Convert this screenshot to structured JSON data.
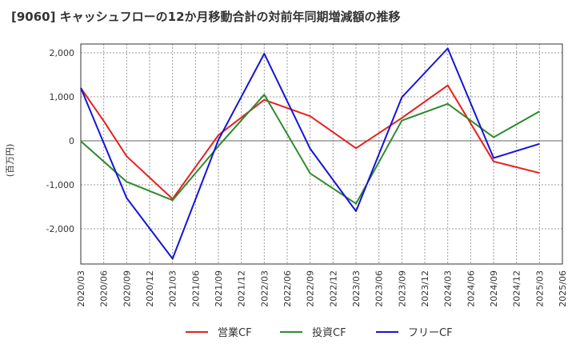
{
  "title": "[9060]  キャッシュフローの12か月移動合計の対前年同期増減額の推移",
  "chart_data": {
    "type": "line",
    "ylabel": "(百万円)",
    "xlabel": "",
    "ylim": [
      -2800,
      2200
    ],
    "yticks": [
      2000,
      1000,
      0,
      -1000,
      -2000
    ],
    "ytick_labels": [
      "2,000",
      "1,000",
      "0",
      "-1,000",
      "-2,000"
    ],
    "x_ticks": [
      "2020/03",
      "2020/06",
      "2020/09",
      "2020/12",
      "2021/03",
      "2021/06",
      "2021/09",
      "2021/12",
      "2022/03",
      "2022/06",
      "2022/09",
      "2022/12",
      "2023/03",
      "2023/06",
      "2023/09",
      "2023/12",
      "2024/03",
      "2024/06",
      "2024/09",
      "2024/12",
      "2025/03",
      "2025/06"
    ],
    "grid": true,
    "legend_position": "bottom",
    "series": [
      {
        "name": "営業CF",
        "color": "#e8201e",
        "x": [
          "2020/03",
          "2020/06",
          "2020/09",
          "2021/03",
          "2021/09",
          "2022/03",
          "2022/09",
          "2023/03",
          "2023/09",
          "2024/03",
          "2024/09",
          "2025/03"
        ],
        "values": [
          1200,
          450,
          -350,
          -1320,
          130,
          930,
          560,
          -170,
          520,
          1260,
          -470,
          -730
        ]
      },
      {
        "name": "投資CF",
        "color": "#2e8b2e",
        "x": [
          "2020/03",
          "2020/09",
          "2021/03",
          "2021/09",
          "2022/03",
          "2022/09",
          "2023/03",
          "2023/09",
          "2024/03",
          "2024/09",
          "2025/03"
        ],
        "values": [
          -10,
          -930,
          -1350,
          -120,
          1050,
          -740,
          -1430,
          460,
          840,
          80,
          670
        ]
      },
      {
        "name": "フリーCF",
        "color": "#1515d8",
        "x": [
          "2020/03",
          "2020/09",
          "2021/03",
          "2021/09",
          "2022/03",
          "2022/09",
          "2023/03",
          "2023/09",
          "2024/03",
          "2024/09",
          "2025/03"
        ],
        "values": [
          1200,
          -1300,
          -2680,
          20,
          1980,
          -180,
          -1600,
          990,
          2100,
          -390,
          -70
        ]
      }
    ]
  }
}
